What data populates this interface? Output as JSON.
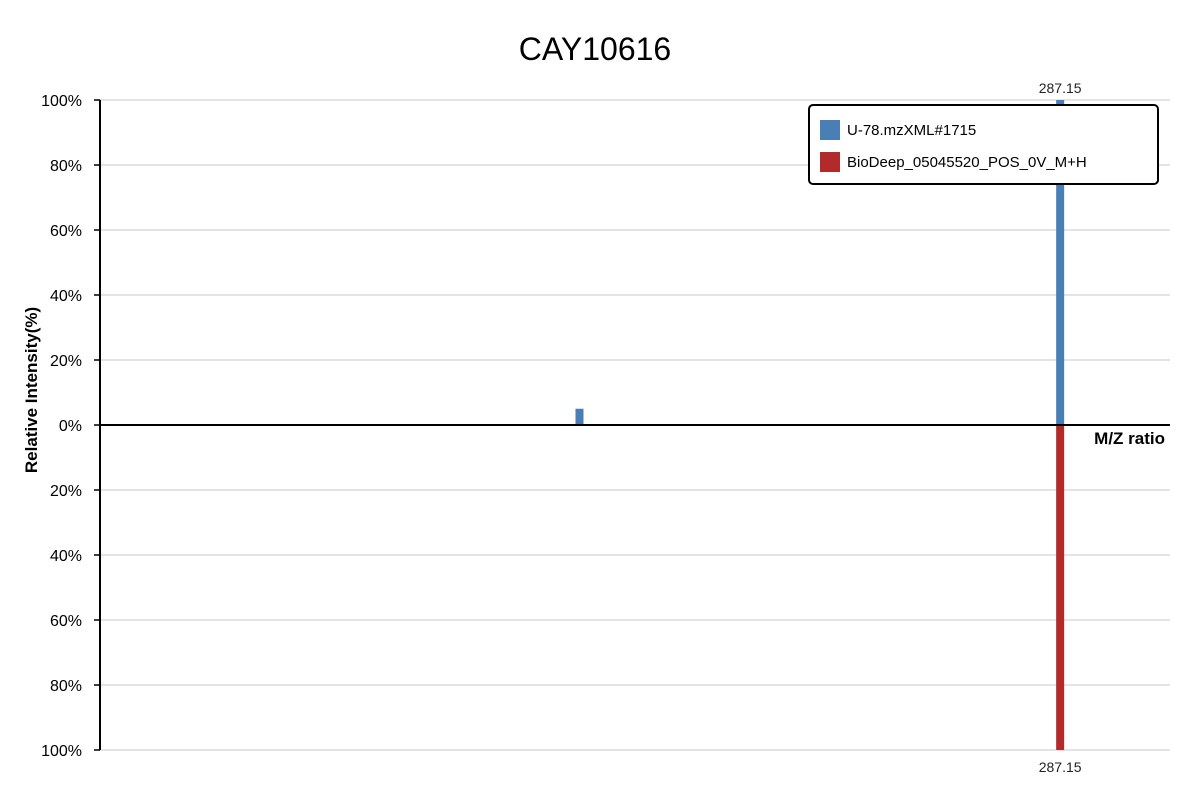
{
  "chart_data": {
    "type": "bar",
    "title": "CAY10616",
    "xlabel": "M/Z ratio",
    "ylabel": "Relative Intensity(%)",
    "ylim": [
      -100,
      100
    ],
    "xlim": [
      0,
      320
    ],
    "grid": true,
    "legend_position": "top-right",
    "y_tick_labels": [
      "100%",
      "80%",
      "60%",
      "40%",
      "20%",
      "0%",
      "20%",
      "40%",
      "60%",
      "80%",
      "100%"
    ],
    "series": [
      {
        "name": "U-78.mzXML#1715",
        "color": "#4a7fb5",
        "direction": "up",
        "peaks": [
          {
            "mz": 143.4,
            "intensity": 5
          },
          {
            "mz": 287.15,
            "intensity": 100,
            "label": "287.15"
          }
        ]
      },
      {
        "name": "BioDeep_05045520_POS_0V_M+H",
        "color": "#b22a2a",
        "direction": "down",
        "peaks": [
          {
            "mz": 287.15,
            "intensity": 100,
            "label": "287.15"
          }
        ]
      }
    ]
  }
}
